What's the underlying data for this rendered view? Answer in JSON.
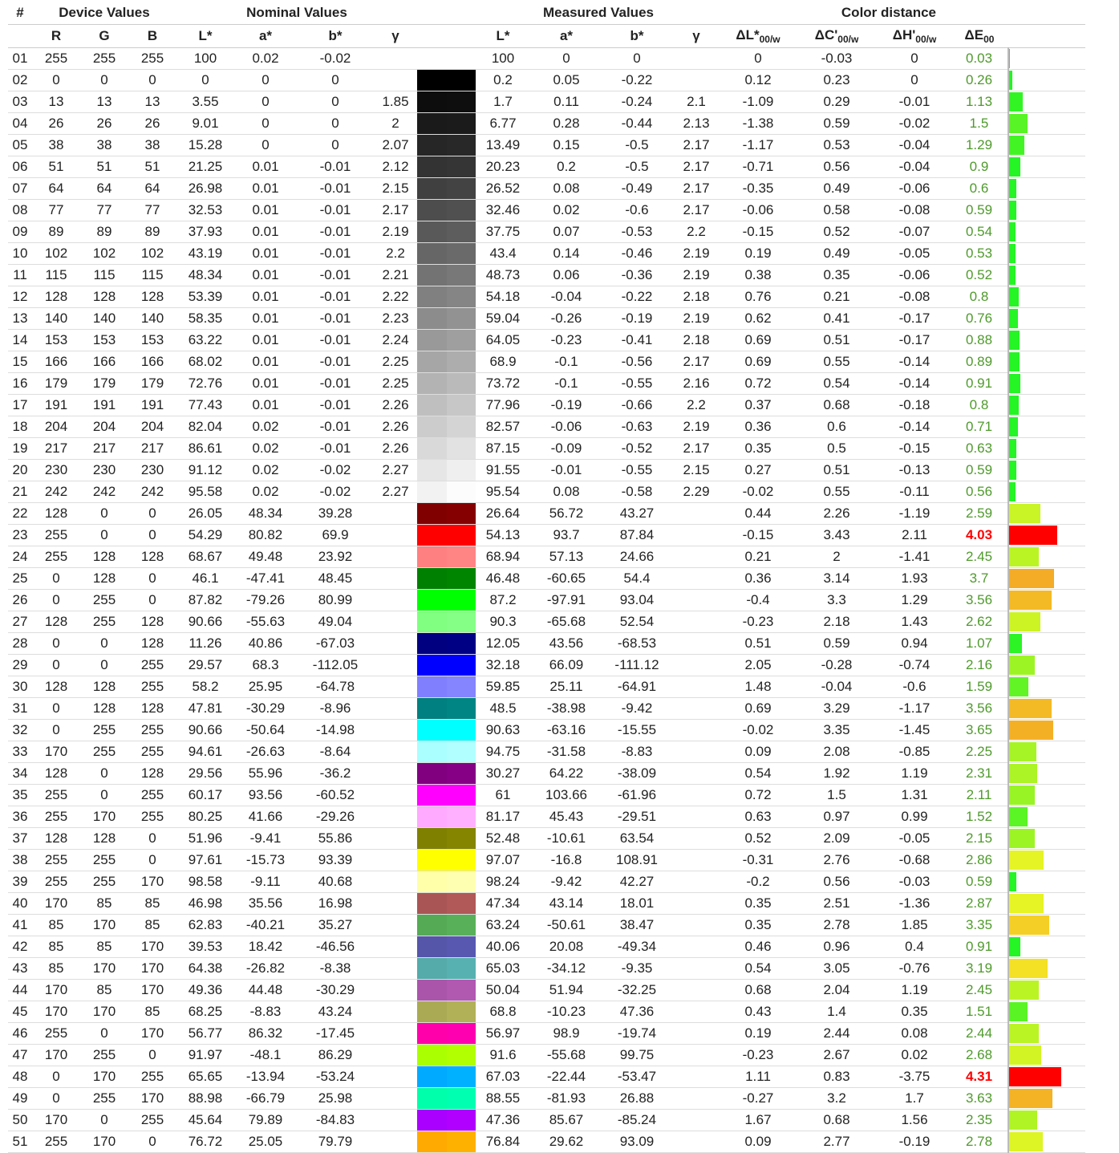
{
  "groups": {
    "num": "#",
    "device": "Device Values",
    "nominal": "Nominal Values",
    "measured": "Measured Values",
    "distance": "Color distance"
  },
  "columns": {
    "R": "R",
    "G": "G",
    "B": "B",
    "L": "L*",
    "a": "a*",
    "b": "b*",
    "g": "γ",
    "mL": "L*",
    "ma": "a*",
    "mb": "b*",
    "mg": "γ",
    "dL": "ΔL*",
    "dLsub": "00/w",
    "dC": "ΔC'",
    "dCsub": "00/w",
    "dH": "ΔH'",
    "dHsub": "00/w",
    "dE": "ΔE",
    "dEsub": "00"
  },
  "threshold_color": "#ff0000",
  "rows": [
    [
      "01",
      "255",
      "255",
      "255",
      "100",
      "0.02",
      "-0.02",
      "",
      "100",
      "0",
      "0",
      "",
      "0",
      "-0.03",
      "0",
      "0.03"
    ],
    [
      "02",
      "0",
      "0",
      "0",
      "0",
      "0",
      "0",
      "",
      "0.2",
      "0.05",
      "-0.22",
      "",
      "0.12",
      "0.23",
      "0",
      "0.26"
    ],
    [
      "03",
      "13",
      "13",
      "13",
      "3.55",
      "0",
      "0",
      "1.85",
      "1.7",
      "0.11",
      "-0.24",
      "2.1",
      "-1.09",
      "0.29",
      "-0.01",
      "1.13"
    ],
    [
      "04",
      "26",
      "26",
      "26",
      "9.01",
      "0",
      "0",
      "2",
      "6.77",
      "0.28",
      "-0.44",
      "2.13",
      "-1.38",
      "0.59",
      "-0.02",
      "1.5"
    ],
    [
      "05",
      "38",
      "38",
      "38",
      "15.28",
      "0",
      "0",
      "2.07",
      "13.49",
      "0.15",
      "-0.5",
      "2.17",
      "-1.17",
      "0.53",
      "-0.04",
      "1.29"
    ],
    [
      "06",
      "51",
      "51",
      "51",
      "21.25",
      "0.01",
      "-0.01",
      "2.12",
      "20.23",
      "0.2",
      "-0.5",
      "2.17",
      "-0.71",
      "0.56",
      "-0.04",
      "0.9"
    ],
    [
      "07",
      "64",
      "64",
      "64",
      "26.98",
      "0.01",
      "-0.01",
      "2.15",
      "26.52",
      "0.08",
      "-0.49",
      "2.17",
      "-0.35",
      "0.49",
      "-0.06",
      "0.6"
    ],
    [
      "08",
      "77",
      "77",
      "77",
      "32.53",
      "0.01",
      "-0.01",
      "2.17",
      "32.46",
      "0.02",
      "-0.6",
      "2.17",
      "-0.06",
      "0.58",
      "-0.08",
      "0.59"
    ],
    [
      "09",
      "89",
      "89",
      "89",
      "37.93",
      "0.01",
      "-0.01",
      "2.19",
      "37.75",
      "0.07",
      "-0.53",
      "2.2",
      "-0.15",
      "0.52",
      "-0.07",
      "0.54"
    ],
    [
      "10",
      "102",
      "102",
      "102",
      "43.19",
      "0.01",
      "-0.01",
      "2.2",
      "43.4",
      "0.14",
      "-0.46",
      "2.19",
      "0.19",
      "0.49",
      "-0.05",
      "0.53"
    ],
    [
      "11",
      "115",
      "115",
      "115",
      "48.34",
      "0.01",
      "-0.01",
      "2.21",
      "48.73",
      "0.06",
      "-0.36",
      "2.19",
      "0.38",
      "0.35",
      "-0.06",
      "0.52"
    ],
    [
      "12",
      "128",
      "128",
      "128",
      "53.39",
      "0.01",
      "-0.01",
      "2.22",
      "54.18",
      "-0.04",
      "-0.22",
      "2.18",
      "0.76",
      "0.21",
      "-0.08",
      "0.8"
    ],
    [
      "13",
      "140",
      "140",
      "140",
      "58.35",
      "0.01",
      "-0.01",
      "2.23",
      "59.04",
      "-0.26",
      "-0.19",
      "2.19",
      "0.62",
      "0.41",
      "-0.17",
      "0.76"
    ],
    [
      "14",
      "153",
      "153",
      "153",
      "63.22",
      "0.01",
      "-0.01",
      "2.24",
      "64.05",
      "-0.23",
      "-0.41",
      "2.18",
      "0.69",
      "0.51",
      "-0.17",
      "0.88"
    ],
    [
      "15",
      "166",
      "166",
      "166",
      "68.02",
      "0.01",
      "-0.01",
      "2.25",
      "68.9",
      "-0.1",
      "-0.56",
      "2.17",
      "0.69",
      "0.55",
      "-0.14",
      "0.89"
    ],
    [
      "16",
      "179",
      "179",
      "179",
      "72.76",
      "0.01",
      "-0.01",
      "2.25",
      "73.72",
      "-0.1",
      "-0.55",
      "2.16",
      "0.72",
      "0.54",
      "-0.14",
      "0.91"
    ],
    [
      "17",
      "191",
      "191",
      "191",
      "77.43",
      "0.01",
      "-0.01",
      "2.26",
      "77.96",
      "-0.19",
      "-0.66",
      "2.2",
      "0.37",
      "0.68",
      "-0.18",
      "0.8"
    ],
    [
      "18",
      "204",
      "204",
      "204",
      "82.04",
      "0.02",
      "-0.01",
      "2.26",
      "82.57",
      "-0.06",
      "-0.63",
      "2.19",
      "0.36",
      "0.6",
      "-0.14",
      "0.71"
    ],
    [
      "19",
      "217",
      "217",
      "217",
      "86.61",
      "0.02",
      "-0.01",
      "2.26",
      "87.15",
      "-0.09",
      "-0.52",
      "2.17",
      "0.35",
      "0.5",
      "-0.15",
      "0.63"
    ],
    [
      "20",
      "230",
      "230",
      "230",
      "91.12",
      "0.02",
      "-0.02",
      "2.27",
      "91.55",
      "-0.01",
      "-0.55",
      "2.15",
      "0.27",
      "0.51",
      "-0.13",
      "0.59"
    ],
    [
      "21",
      "242",
      "242",
      "242",
      "95.58",
      "0.02",
      "-0.02",
      "2.27",
      "95.54",
      "0.08",
      "-0.58",
      "2.29",
      "-0.02",
      "0.55",
      "-0.11",
      "0.56"
    ],
    [
      "22",
      "128",
      "0",
      "0",
      "26.05",
      "48.34",
      "39.28",
      "",
      "26.64",
      "56.72",
      "43.27",
      "",
      "0.44",
      "2.26",
      "-1.19",
      "2.59"
    ],
    [
      "23",
      "255",
      "0",
      "0",
      "54.29",
      "80.82",
      "69.9",
      "",
      "54.13",
      "93.7",
      "87.84",
      "",
      "-0.15",
      "3.43",
      "2.11",
      "4.03"
    ],
    [
      "24",
      "255",
      "128",
      "128",
      "68.67",
      "49.48",
      "23.92",
      "",
      "68.94",
      "57.13",
      "24.66",
      "",
      "0.21",
      "2",
      "-1.41",
      "2.45"
    ],
    [
      "25",
      "0",
      "128",
      "0",
      "46.1",
      "-47.41",
      "48.45",
      "",
      "46.48",
      "-60.65",
      "54.4",
      "",
      "0.36",
      "3.14",
      "1.93",
      "3.7"
    ],
    [
      "26",
      "0",
      "255",
      "0",
      "87.82",
      "-79.26",
      "80.99",
      "",
      "87.2",
      "-97.91",
      "93.04",
      "",
      "-0.4",
      "3.3",
      "1.29",
      "3.56"
    ],
    [
      "27",
      "128",
      "255",
      "128",
      "90.66",
      "-55.63",
      "49.04",
      "",
      "90.3",
      "-65.68",
      "52.54",
      "",
      "-0.23",
      "2.18",
      "1.43",
      "2.62"
    ],
    [
      "28",
      "0",
      "0",
      "128",
      "11.26",
      "40.86",
      "-67.03",
      "",
      "12.05",
      "43.56",
      "-68.53",
      "",
      "0.51",
      "0.59",
      "0.94",
      "1.07"
    ],
    [
      "29",
      "0",
      "0",
      "255",
      "29.57",
      "68.3",
      "-112.05",
      "",
      "32.18",
      "66.09",
      "-111.12",
      "",
      "2.05",
      "-0.28",
      "-0.74",
      "2.16"
    ],
    [
      "30",
      "128",
      "128",
      "255",
      "58.2",
      "25.95",
      "-64.78",
      "",
      "59.85",
      "25.11",
      "-64.91",
      "",
      "1.48",
      "-0.04",
      "-0.6",
      "1.59"
    ],
    [
      "31",
      "0",
      "128",
      "128",
      "47.81",
      "-30.29",
      "-8.96",
      "",
      "48.5",
      "-38.98",
      "-9.42",
      "",
      "0.69",
      "3.29",
      "-1.17",
      "3.56"
    ],
    [
      "32",
      "0",
      "255",
      "255",
      "90.66",
      "-50.64",
      "-14.98",
      "",
      "90.63",
      "-63.16",
      "-15.55",
      "",
      "-0.02",
      "3.35",
      "-1.45",
      "3.65"
    ],
    [
      "33",
      "170",
      "255",
      "255",
      "94.61",
      "-26.63",
      "-8.64",
      "",
      "94.75",
      "-31.58",
      "-8.83",
      "",
      "0.09",
      "2.08",
      "-0.85",
      "2.25"
    ],
    [
      "34",
      "128",
      "0",
      "128",
      "29.56",
      "55.96",
      "-36.2",
      "",
      "30.27",
      "64.22",
      "-38.09",
      "",
      "0.54",
      "1.92",
      "1.19",
      "2.31"
    ],
    [
      "35",
      "255",
      "0",
      "255",
      "60.17",
      "93.56",
      "-60.52",
      "",
      "61",
      "103.66",
      "-61.96",
      "",
      "0.72",
      "1.5",
      "1.31",
      "2.11"
    ],
    [
      "36",
      "255",
      "170",
      "255",
      "80.25",
      "41.66",
      "-29.26",
      "",
      "81.17",
      "45.43",
      "-29.51",
      "",
      "0.63",
      "0.97",
      "0.99",
      "1.52"
    ],
    [
      "37",
      "128",
      "128",
      "0",
      "51.96",
      "-9.41",
      "55.86",
      "",
      "52.48",
      "-10.61",
      "63.54",
      "",
      "0.52",
      "2.09",
      "-0.05",
      "2.15"
    ],
    [
      "38",
      "255",
      "255",
      "0",
      "97.61",
      "-15.73",
      "93.39",
      "",
      "97.07",
      "-16.8",
      "108.91",
      "",
      "-0.31",
      "2.76",
      "-0.68",
      "2.86"
    ],
    [
      "39",
      "255",
      "255",
      "170",
      "98.58",
      "-9.11",
      "40.68",
      "",
      "98.24",
      "-9.42",
      "42.27",
      "",
      "-0.2",
      "0.56",
      "-0.03",
      "0.59"
    ],
    [
      "40",
      "170",
      "85",
      "85",
      "46.98",
      "35.56",
      "16.98",
      "",
      "47.34",
      "43.14",
      "18.01",
      "",
      "0.35",
      "2.51",
      "-1.36",
      "2.87"
    ],
    [
      "41",
      "85",
      "170",
      "85",
      "62.83",
      "-40.21",
      "35.27",
      "",
      "63.24",
      "-50.61",
      "38.47",
      "",
      "0.35",
      "2.78",
      "1.85",
      "3.35"
    ],
    [
      "42",
      "85",
      "85",
      "170",
      "39.53",
      "18.42",
      "-46.56",
      "",
      "40.06",
      "20.08",
      "-49.34",
      "",
      "0.46",
      "0.96",
      "0.4",
      "0.91"
    ],
    [
      "43",
      "85",
      "170",
      "170",
      "64.38",
      "-26.82",
      "-8.38",
      "",
      "65.03",
      "-34.12",
      "-9.35",
      "",
      "0.54",
      "3.05",
      "-0.76",
      "3.19"
    ],
    [
      "44",
      "170",
      "85",
      "170",
      "49.36",
      "44.48",
      "-30.29",
      "",
      "50.04",
      "51.94",
      "-32.25",
      "",
      "0.68",
      "2.04",
      "1.19",
      "2.45"
    ],
    [
      "45",
      "170",
      "170",
      "85",
      "68.25",
      "-8.83",
      "43.24",
      "",
      "68.8",
      "-10.23",
      "47.36",
      "",
      "0.43",
      "1.4",
      "0.35",
      "1.51"
    ],
    [
      "46",
      "255",
      "0",
      "170",
      "56.77",
      "86.32",
      "-17.45",
      "",
      "56.97",
      "98.9",
      "-19.74",
      "",
      "0.19",
      "2.44",
      "0.08",
      "2.44"
    ],
    [
      "47",
      "170",
      "255",
      "0",
      "91.97",
      "-48.1",
      "86.29",
      "",
      "91.6",
      "-55.68",
      "99.75",
      "",
      "-0.23",
      "2.67",
      "0.02",
      "2.68"
    ],
    [
      "48",
      "0",
      "170",
      "255",
      "65.65",
      "-13.94",
      "-53.24",
      "",
      "67.03",
      "-22.44",
      "-53.47",
      "",
      "1.11",
      "0.83",
      "-3.75",
      "4.31"
    ],
    [
      "49",
      "0",
      "255",
      "170",
      "88.98",
      "-66.79",
      "25.98",
      "",
      "88.55",
      "-81.93",
      "26.88",
      "",
      "-0.27",
      "3.2",
      "1.7",
      "3.63"
    ],
    [
      "50",
      "170",
      "0",
      "255",
      "45.64",
      "79.89",
      "-84.83",
      "",
      "47.36",
      "85.67",
      "-85.24",
      "",
      "1.67",
      "0.68",
      "1.56",
      "2.35"
    ],
    [
      "51",
      "255",
      "170",
      "0",
      "76.72",
      "25.05",
      "79.79",
      "",
      "76.84",
      "29.62",
      "93.09",
      "",
      "0.09",
      "2.77",
      "-0.19",
      "2.78"
    ]
  ]
}
